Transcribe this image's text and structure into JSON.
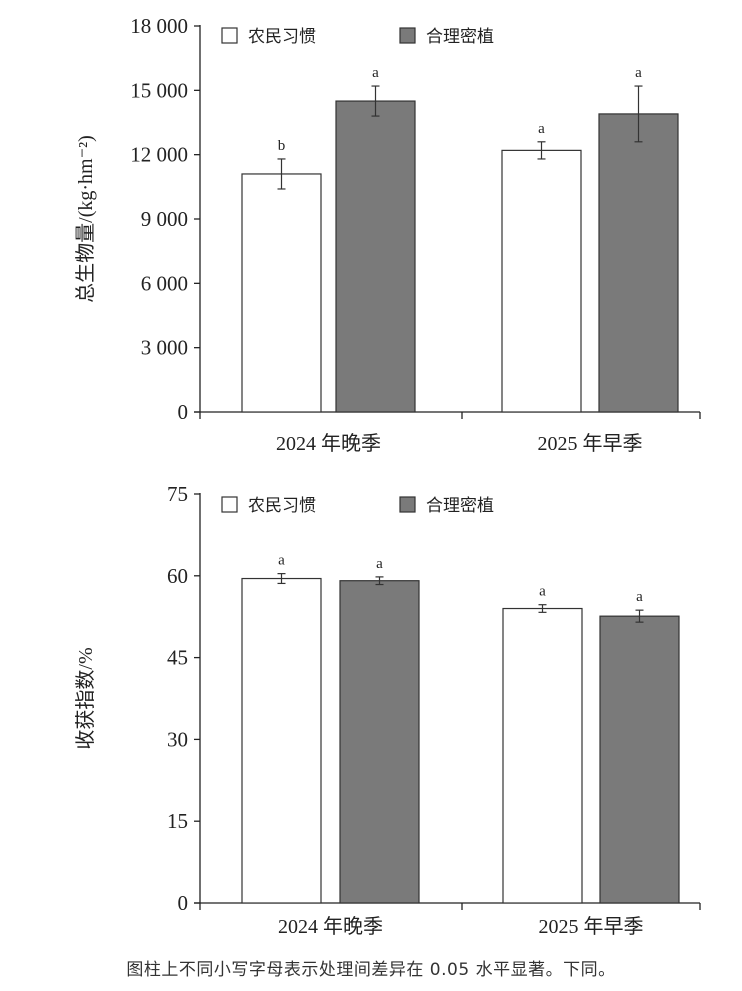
{
  "caption": "图柱上不同小写字母表示处理间差异在 0.05 水平显著。下同。",
  "colors": {
    "farmer": "#ffffff",
    "dense": "#7a7a7a",
    "stroke": "#333333"
  },
  "chart_data": [
    {
      "type": "bar",
      "title": "",
      "ylabel": "总生物量/(kg·hm⁻²)",
      "ylim": [
        0,
        18000
      ],
      "yticks": [
        0,
        3000,
        6000,
        9000,
        12000,
        15000,
        18000
      ],
      "ytick_labels": [
        "0",
        "3 000",
        "6 000",
        "9 000",
        "12 000",
        "15 000",
        "18 000"
      ],
      "categories": [
        "2024 年晚季",
        "2025 年早季"
      ],
      "legend": {
        "position": "top-left"
      },
      "series": [
        {
          "name": "农民习惯",
          "values": [
            11100,
            12200
          ],
          "errors": [
            700,
            400
          ],
          "letters": [
            "b",
            "a"
          ]
        },
        {
          "name": "合理密植",
          "values": [
            14500,
            13900
          ],
          "errors": [
            700,
            1300
          ],
          "letters": [
            "a",
            "a"
          ]
        }
      ]
    },
    {
      "type": "bar",
      "title": "",
      "ylabel": "收获指数/%",
      "ylim": [
        0,
        75
      ],
      "yticks": [
        0,
        15,
        30,
        45,
        60,
        75
      ],
      "ytick_labels": [
        "0",
        "15",
        "30",
        "45",
        "60",
        "75"
      ],
      "categories": [
        "2024 年晚季",
        "2025 年早季"
      ],
      "legend": {
        "position": "top-left"
      },
      "series": [
        {
          "name": "农民习惯",
          "values": [
            59.5,
            54.0
          ],
          "errors": [
            0.9,
            0.7
          ],
          "letters": [
            "a",
            "a"
          ]
        },
        {
          "name": "合理密植",
          "values": [
            59.1,
            52.6
          ],
          "errors": [
            0.7,
            1.1
          ],
          "letters": [
            "a",
            "a"
          ]
        }
      ]
    }
  ]
}
